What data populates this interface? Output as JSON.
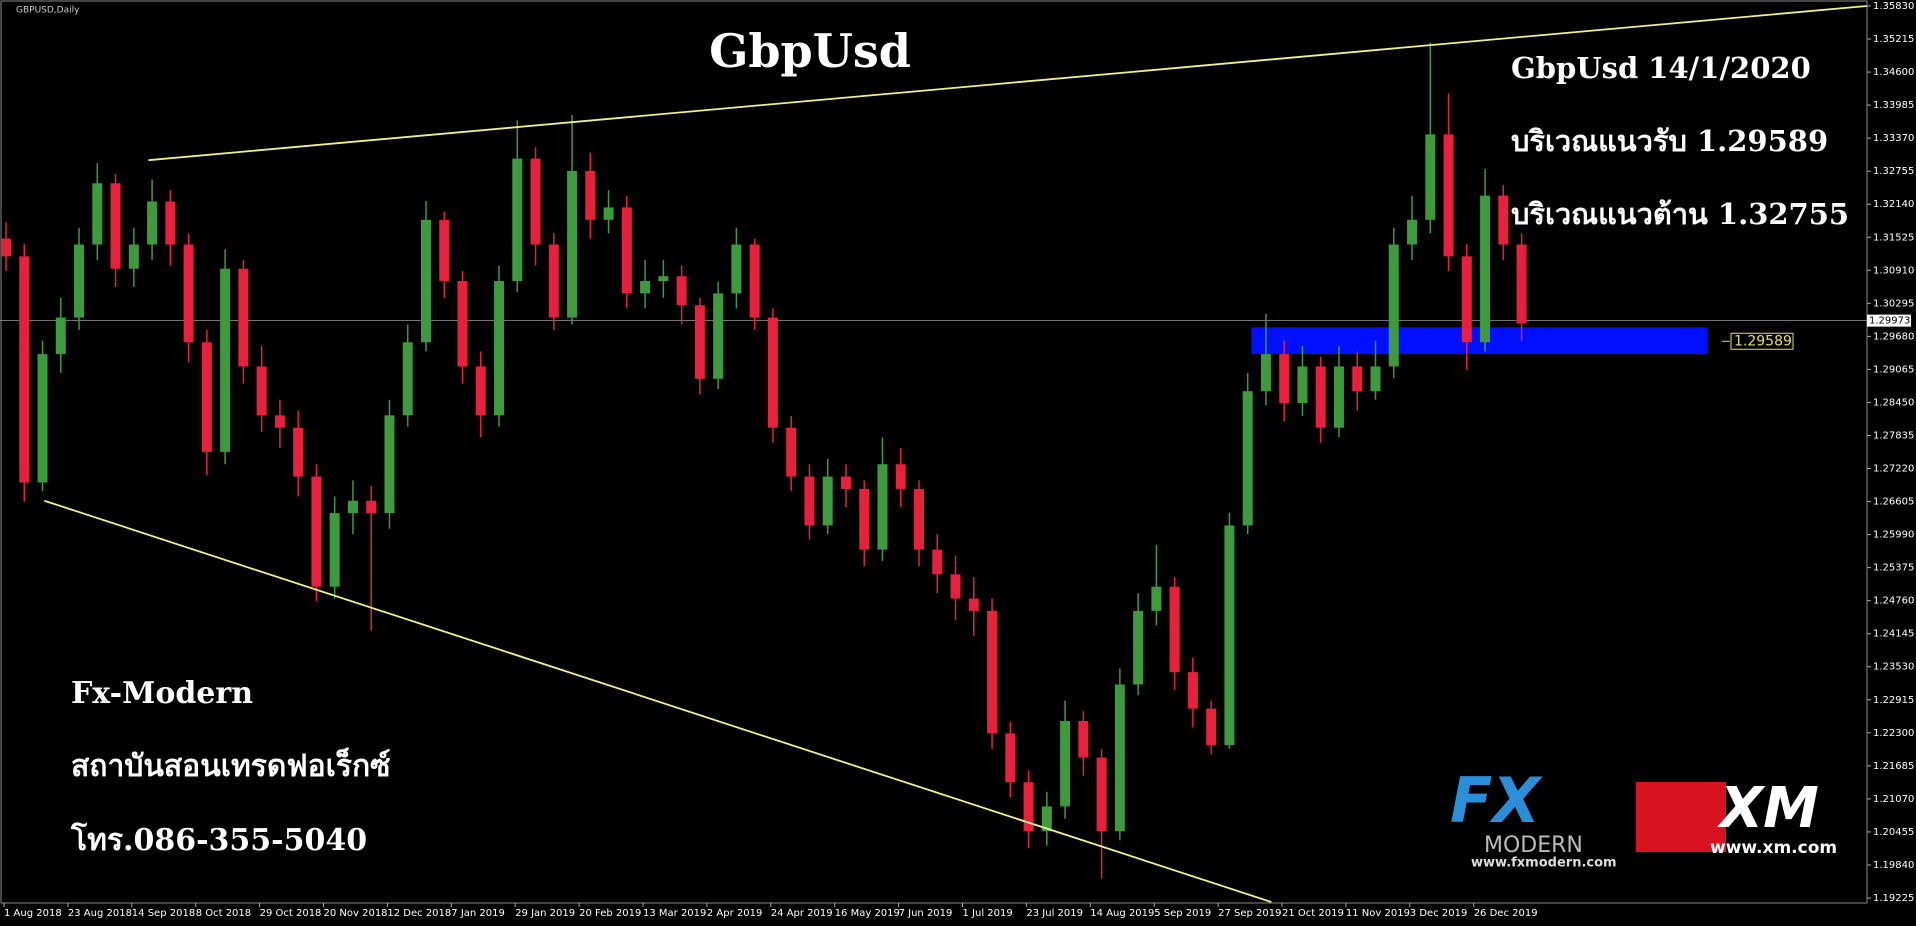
{
  "chart_data": {
    "type": "candlestick",
    "symbol": "GBPUSD,Daily",
    "title": "GbpUsd",
    "up_color": "#3d9a3d",
    "down_color": "#e8203c",
    "ylim": [
      1.19225,
      1.3583
    ],
    "yticks": [
      {
        "value": 1.3583,
        "label": "1.35830"
      },
      1.35215,
      {
        "value": 1.346,
        "label": "1.34600"
      },
      1.33985,
      {
        "value": 1.3337,
        "label": "1.33370"
      },
      1.32755,
      {
        "value": 1.3214,
        "label": "1.32140"
      },
      1.31525,
      {
        "value": 1.3091,
        "label": "1.30910"
      },
      1.30295,
      {
        "value": 1.2968,
        "label": "1.29680"
      },
      1.29065,
      {
        "value": 1.2845,
        "label": "1.28450"
      },
      1.27835,
      {
        "value": 1.2722,
        "label": "1.27220"
      },
      1.26605,
      {
        "value": 1.2599,
        "label": "1.25990"
      },
      1.25375,
      {
        "value": 1.2476,
        "label": "1.24760"
      },
      1.24145,
      {
        "value": 1.2353,
        "label": "1.23530"
      },
      1.22915,
      {
        "value": 1.223,
        "label": "1.22300"
      },
      1.21685,
      {
        "value": 1.2107,
        "label": "1.21070"
      },
      1.20455,
      {
        "value": 1.1984,
        "label": "1.19840"
      },
      1.19225
    ],
    "x_labels": [
      "1 Aug 2018",
      "23 Aug 2018",
      "14 Sep 2018",
      "8 Oct 2018",
      "29 Oct 2018",
      "20 Nov 2018",
      "12 Dec 2018",
      "7 Jan 2019",
      "29 Jan 2019",
      "20 Feb 2019",
      "13 Mar 2019",
      "2 Apr 2019",
      "24 Apr 2019",
      "16 May 2019",
      "7 Jun 2019",
      "1 Jul 2019",
      "23 Jul 2019",
      "14 Aug 2019",
      "5 Sep 2019",
      "27 Sep 2019",
      "21 Oct 2019",
      "11 Nov 2019",
      "3 Dec 2019",
      "26 Dec 2019"
    ],
    "ohlc": [
      [
        1.315,
        1.318,
        1.309,
        1.3117
      ],
      [
        1.3117,
        1.314,
        1.266,
        1.2696
      ],
      [
        1.2696,
        1.296,
        1.268,
        1.2935
      ],
      [
        1.2935,
        1.304,
        1.29,
        1.3003
      ],
      [
        1.3003,
        1.317,
        1.298,
        1.3139
      ],
      [
        1.3139,
        1.329,
        1.311,
        1.3253
      ],
      [
        1.3253,
        1.327,
        1.306,
        1.3094
      ],
      [
        1.3094,
        1.317,
        1.306,
        1.3139
      ],
      [
        1.3139,
        1.326,
        1.311,
        1.3219
      ],
      [
        1.3219,
        1.324,
        1.31,
        1.3139
      ],
      [
        1.3139,
        1.316,
        1.292,
        1.2957
      ],
      [
        1.2957,
        1.298,
        1.271,
        1.2753
      ],
      [
        1.2753,
        1.313,
        1.273,
        1.3094
      ],
      [
        1.3094,
        1.311,
        1.288,
        1.2912
      ],
      [
        1.2912,
        1.295,
        1.279,
        1.2821
      ],
      [
        1.2821,
        1.285,
        1.276,
        1.2798
      ],
      [
        1.2798,
        1.283,
        1.267,
        1.2707
      ],
      [
        1.2707,
        1.273,
        1.2475,
        1.2502
      ],
      [
        1.2502,
        1.267,
        1.248,
        1.2639
      ],
      [
        1.2639,
        1.27,
        1.26,
        1.2662
      ],
      [
        1.2662,
        1.269,
        1.242,
        1.2639
      ],
      [
        1.2639,
        1.285,
        1.261,
        1.2821
      ],
      [
        1.2821,
        1.299,
        1.28,
        1.2957
      ],
      [
        1.2957,
        1.322,
        1.294,
        1.3185
      ],
      [
        1.3185,
        1.32,
        1.304,
        1.3071
      ],
      [
        1.3071,
        1.309,
        1.288,
        1.2912
      ],
      [
        1.2912,
        1.294,
        1.278,
        1.2821
      ],
      [
        1.2821,
        1.31,
        1.28,
        1.3071
      ],
      [
        1.3071,
        1.337,
        1.305,
        1.3299
      ],
      [
        1.3299,
        1.332,
        1.31,
        1.3139
      ],
      [
        1.3139,
        1.316,
        1.298,
        1.3003
      ],
      [
        1.3003,
        1.338,
        1.299,
        1.3276
      ],
      [
        1.3276,
        1.331,
        1.315,
        1.3185
      ],
      [
        1.3185,
        1.324,
        1.316,
        1.3208
      ],
      [
        1.3208,
        1.323,
        1.302,
        1.3048
      ],
      [
        1.3048,
        1.311,
        1.302,
        1.3071
      ],
      [
        1.3071,
        1.311,
        1.304,
        1.308
      ],
      [
        1.308,
        1.31,
        1.299,
        1.3026
      ],
      [
        1.3026,
        1.304,
        1.286,
        1.2889
      ],
      [
        1.2889,
        1.307,
        1.287,
        1.3048
      ],
      [
        1.3048,
        1.317,
        1.302,
        1.3139
      ],
      [
        1.3139,
        1.315,
        1.298,
        1.3003
      ],
      [
        1.3003,
        1.302,
        1.277,
        1.2798
      ],
      [
        1.2798,
        1.282,
        1.268,
        1.2707
      ],
      [
        1.2707,
        1.273,
        1.259,
        1.2616
      ],
      [
        1.2616,
        1.274,
        1.26,
        1.2707
      ],
      [
        1.2707,
        1.273,
        1.265,
        1.2684
      ],
      [
        1.2684,
        1.27,
        1.254,
        1.2571
      ],
      [
        1.2571,
        1.278,
        1.255,
        1.273
      ],
      [
        1.273,
        1.276,
        1.265,
        1.2684
      ],
      [
        1.2684,
        1.27,
        1.254,
        1.2571
      ],
      [
        1.2571,
        1.26,
        1.249,
        1.2525
      ],
      [
        1.2525,
        1.256,
        1.244,
        1.248
      ],
      [
        1.248,
        1.252,
        1.241,
        1.2457
      ],
      [
        1.2457,
        1.248,
        1.22,
        1.2229
      ],
      [
        1.2229,
        1.225,
        1.211,
        1.2138
      ],
      [
        1.2138,
        1.216,
        1.2015,
        1.2047
      ],
      [
        1.2047,
        1.212,
        1.202,
        1.2093
      ],
      [
        1.2093,
        1.229,
        1.207,
        1.2252
      ],
      [
        1.2252,
        1.227,
        1.215,
        1.2184
      ],
      [
        1.2184,
        1.22,
        1.1959,
        1.2047
      ],
      [
        1.2047,
        1.235,
        1.203,
        1.232
      ],
      [
        1.232,
        1.249,
        1.23,
        1.2457
      ],
      [
        1.2457,
        1.258,
        1.243,
        1.2502
      ],
      [
        1.2502,
        1.252,
        1.231,
        1.2343
      ],
      [
        1.2343,
        1.237,
        1.224,
        1.2275
      ],
      [
        1.2275,
        1.229,
        1.219,
        1.2207
      ],
      [
        1.2207,
        1.264,
        1.22,
        1.2616
      ],
      [
        1.2616,
        1.29,
        1.26,
        1.2866
      ],
      [
        1.2866,
        1.301,
        1.284,
        1.2935
      ],
      [
        1.2935,
        1.296,
        1.281,
        1.2844
      ],
      [
        1.2844,
        1.295,
        1.282,
        1.2912
      ],
      [
        1.2912,
        1.293,
        1.277,
        1.2798
      ],
      [
        1.2798,
        1.295,
        1.278,
        1.2912
      ],
      [
        1.2912,
        1.294,
        1.283,
        1.2866
      ],
      [
        1.2866,
        1.296,
        1.285,
        1.2912
      ],
      [
        1.2912,
        1.317,
        1.289,
        1.3139
      ],
      [
        1.3139,
        1.323,
        1.311,
        1.3185
      ],
      [
        1.3185,
        1.3515,
        1.316,
        1.3344
      ],
      [
        1.3344,
        1.342,
        1.309,
        1.3117
      ],
      [
        1.3117,
        1.314,
        1.2905,
        1.2957
      ],
      [
        1.2957,
        1.328,
        1.294,
        1.323
      ],
      [
        1.323,
        1.325,
        1.311,
        1.3139
      ],
      [
        1.3139,
        1.316,
        1.296,
        1.2992
      ]
    ],
    "current_price": 1.29973,
    "support_zone": {
      "low": 1.2935,
      "high": 1.2985,
      "from": 68.2,
      "to": 93.2,
      "color": "#0010ff",
      "label": 1.29589
    },
    "trendlines": [
      {
        "color": "#f2ef8a",
        "points": [
          [
            7.8,
            1.3296
          ],
          [
            101.9,
            1.3583
          ]
        ]
      },
      {
        "color": "#f2ef8a",
        "points": [
          [
            2.1,
            1.2662
          ],
          [
            69.3,
            1.1915
          ]
        ]
      }
    ],
    "annotations": [
      "GbpUsd 14/1/2020",
      "บริเวณแนวรับ 1.29589",
      "บริเวณแนวต้าน 1.32755"
    ],
    "footer": [
      "Fx-Modern",
      "สถาบันสอนเทรดฟอเร็กซ์",
      "โทร.086-355-5040"
    ],
    "logos": {
      "fx": "FX",
      "fx_sub": "MODERN",
      "fx_url": "www.fxmodern.com",
      "xm": "XM",
      "xm_url": "www.xm.com"
    }
  }
}
